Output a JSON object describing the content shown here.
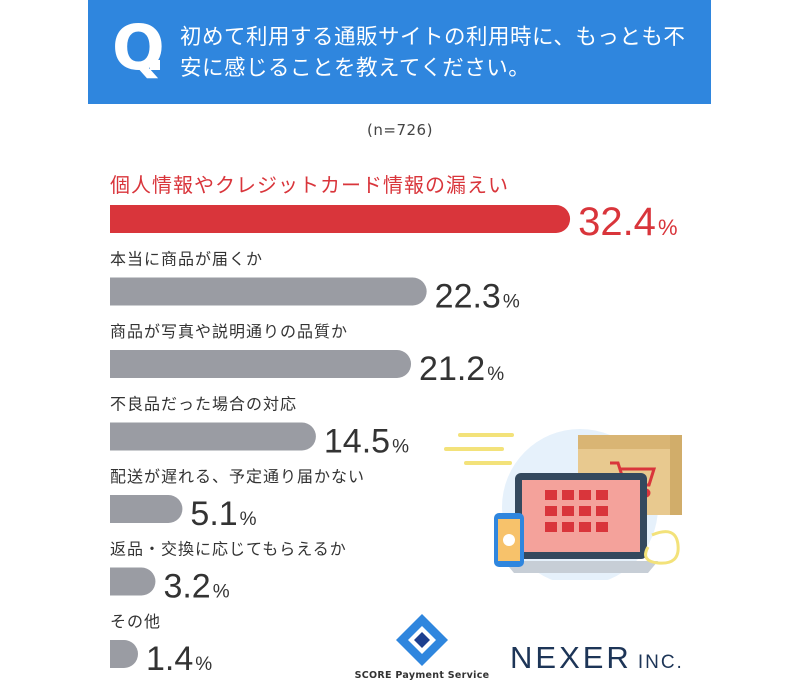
{
  "question": {
    "mark": "Q",
    "text": "初めて利用する通販サイトの利用時に、もっとも不安に感じることを教えてください。"
  },
  "sample_size": "(n=726)",
  "chart_data": {
    "type": "bar",
    "orientation": "horizontal",
    "categories": [
      "個人情報やクレジットカード情報の漏えい",
      "本当に商品が届くか",
      "商品が写真や説明通りの品質か",
      "不良品だった場合の対応",
      "配送が遅れる、予定通り届かない",
      "返品・交換に応じてもらえるか",
      "その他"
    ],
    "values": [
      32.4,
      22.3,
      21.2,
      14.5,
      5.1,
      3.2,
      1.4
    ],
    "unit": "%",
    "highlight_index": 0,
    "colors": {
      "highlight": "#d9353b",
      "bar": "#9a9ca3",
      "label": "#333333",
      "highlight_label": "#d9353b"
    }
  },
  "logos": {
    "score": {
      "label": "SCORE Payment Service"
    },
    "nexer": {
      "name": "NEXER",
      "suffix": "INC."
    }
  },
  "colors": {
    "banner": "#2f86de"
  }
}
